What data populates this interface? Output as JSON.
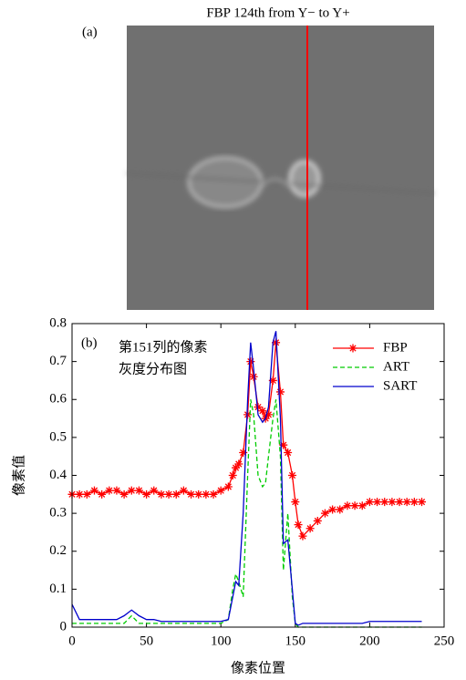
{
  "panel_a": {
    "label": "(a)",
    "title": "FBP 124th from Y− to Y+"
  },
  "chart_data": {
    "type": "line",
    "label": "(b)",
    "annotation": [
      "第151列的像素",
      "灰度分布图"
    ],
    "x_label": "像素位置",
    "y_label": "像素值",
    "x": [
      0,
      5,
      10,
      15,
      20,
      25,
      30,
      35,
      40,
      45,
      50,
      55,
      60,
      65,
      70,
      75,
      80,
      85,
      90,
      95,
      100,
      105,
      108,
      110,
      112,
      115,
      118,
      120,
      122,
      125,
      128,
      130,
      132,
      135,
      137,
      140,
      142,
      145,
      148,
      150,
      152,
      155,
      160,
      165,
      170,
      175,
      180,
      185,
      190,
      195,
      200,
      205,
      210,
      215,
      220,
      225,
      230,
      235
    ],
    "series": [
      {
        "name": "FBP",
        "color": "#ff0000",
        "style": "solid",
        "marker": "star",
        "values": [
          0.35,
          0.35,
          0.35,
          0.36,
          0.35,
          0.36,
          0.36,
          0.35,
          0.36,
          0.36,
          0.35,
          0.36,
          0.35,
          0.35,
          0.35,
          0.36,
          0.35,
          0.35,
          0.35,
          0.35,
          0.36,
          0.37,
          0.4,
          0.42,
          0.43,
          0.46,
          0.56,
          0.7,
          0.66,
          0.58,
          0.57,
          0.55,
          0.56,
          0.65,
          0.75,
          0.62,
          0.48,
          0.46,
          0.4,
          0.33,
          0.27,
          0.24,
          0.26,
          0.28,
          0.3,
          0.31,
          0.31,
          0.32,
          0.32,
          0.32,
          0.33,
          0.33,
          0.33,
          0.33,
          0.33,
          0.33,
          0.33,
          0.33
        ]
      },
      {
        "name": "ART",
        "color": "#00cc00",
        "style": "dash",
        "values": [
          0.01,
          0.01,
          0.01,
          0.01,
          0.01,
          0.01,
          0.01,
          0.01,
          0.03,
          0.01,
          0.01,
          0.01,
          0.01,
          0.01,
          0.01,
          0.01,
          0.01,
          0.01,
          0.01,
          0.01,
          0.01,
          0.02,
          0.1,
          0.14,
          0.12,
          0.08,
          0.4,
          0.6,
          0.56,
          0.4,
          0.37,
          0.38,
          0.45,
          0.55,
          0.6,
          0.45,
          0.15,
          0.3,
          0.08,
          0.01,
          0,
          0,
          0,
          0,
          0,
          0,
          0,
          0,
          0,
          0,
          0,
          0,
          0,
          0,
          0,
          0,
          0,
          0
        ]
      },
      {
        "name": "SART",
        "color": "#0000cc",
        "style": "solid",
        "values": [
          0.06,
          0.02,
          0.02,
          0.02,
          0.02,
          0.02,
          0.02,
          0.03,
          0.045,
          0.03,
          0.02,
          0.02,
          0.015,
          0.015,
          0.015,
          0.015,
          0.015,
          0.015,
          0.015,
          0.015,
          0.015,
          0.02,
          0.08,
          0.12,
          0.11,
          0.3,
          0.6,
          0.75,
          0.68,
          0.56,
          0.54,
          0.55,
          0.58,
          0.75,
          0.78,
          0.55,
          0.22,
          0.23,
          0.1,
          0.01,
          0.005,
          0.01,
          0.01,
          0.01,
          0.01,
          0.01,
          0.01,
          0.01,
          0.01,
          0.01,
          0.015,
          0.015,
          0.015,
          0.015,
          0.015,
          0.015,
          0.015,
          0.015
        ]
      }
    ],
    "xlim": [
      0,
      250
    ],
    "ylim": [
      0,
      0.8
    ],
    "xticks": [
      0,
      50,
      100,
      150,
      200,
      250
    ],
    "yticks": [
      0,
      0.1,
      0.2,
      0.3,
      0.4,
      0.5,
      0.6,
      0.7,
      0.8
    ],
    "legend": "upper right"
  }
}
